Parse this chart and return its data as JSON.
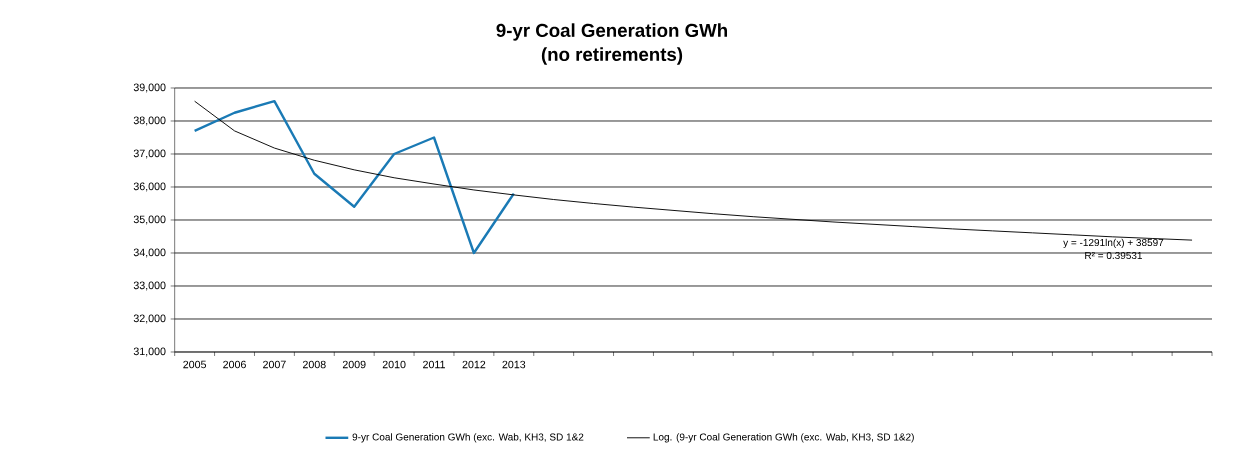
{
  "chart_data": {
    "type": "line",
    "title": "9-yr Coal Generation GWh",
    "subtitle": "(no retirements)",
    "categories": [
      "2005",
      "2006",
      "2007",
      "2008",
      "2009",
      "2010",
      "2011",
      "2012",
      "2013",
      null,
      null,
      null,
      null,
      null,
      null,
      null,
      null,
      null,
      null,
      null,
      null,
      null,
      null,
      null,
      null,
      null
    ],
    "series": [
      {
        "name": "9-yr Coal Generation GWh (exc. Wab, KH3, SD 1&2",
        "color": "#1a7ab5",
        "values": [
          37700,
          38250,
          38600,
          36400,
          35400,
          37000,
          37500,
          34000,
          35800,
          null,
          null,
          null,
          null,
          null,
          null,
          null,
          null,
          null,
          null,
          null,
          null,
          null,
          null,
          null,
          null,
          null
        ]
      },
      {
        "name": "Log. (9-yr Coal Generation GWh (exc. Wab, KH3, SD 1&2)",
        "color": "#000000",
        "values": [
          38600,
          37700,
          37180,
          36810,
          36520,
          36280,
          36090,
          35910,
          35760,
          35620,
          35500,
          35390,
          35290,
          35190,
          35100,
          35020,
          34940,
          34870,
          34800,
          34730,
          34670,
          34610,
          34550,
          34490,
          34440,
          34390
        ]
      }
    ],
    "annotations": [
      "y = -1291ln(x) + 38597",
      "R² = 0.39531"
    ],
    "ylim": [
      31000,
      39000
    ],
    "yticks": [
      {
        "value": 31000,
        "label": "31,000"
      },
      {
        "value": 32000,
        "label": "32,000"
      },
      {
        "value": 33000,
        "label": "33,000"
      },
      {
        "value": 34000,
        "label": "34,000"
      },
      {
        "value": 35000,
        "label": "35,000"
      },
      {
        "value": 36000,
        "label": "36,000"
      },
      {
        "value": 37000,
        "label": "37,000"
      },
      {
        "value": 38000,
        "label": "38,000"
      },
      {
        "value": 39000,
        "label": "39,000"
      }
    ],
    "grid": "y",
    "legend": "bottom",
    "marker": "none",
    "line_style": "solid"
  }
}
